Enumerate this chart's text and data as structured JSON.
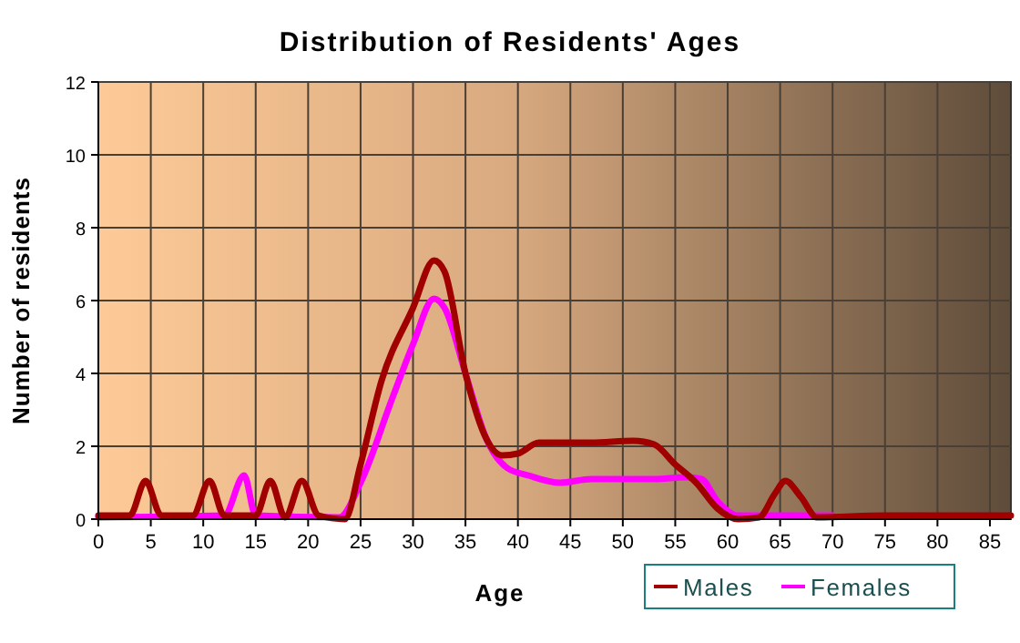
{
  "chart_data": {
    "type": "line",
    "title": "Distribution of Residents' Ages",
    "xlabel": "Age",
    "ylabel": "Number of residents",
    "xlim": [
      0,
      87
    ],
    "xticks": [
      0,
      5,
      10,
      15,
      20,
      25,
      30,
      35,
      40,
      45,
      50,
      55,
      60,
      65,
      70,
      75,
      80,
      85
    ],
    "ylim": [
      0,
      12
    ],
    "yticks": [
      0,
      2,
      4,
      6,
      8,
      10,
      12
    ],
    "grid": true,
    "legend": "bottom right",
    "line_style": "solid",
    "series": [
      {
        "name": "Males",
        "color": "#a00000",
        "x": [
          0,
          3,
          4.5,
          6,
          9,
          10.6,
          12,
          15,
          16.4,
          17.8,
          19.4,
          21,
          23.5,
          25,
          27,
          30,
          32,
          33,
          35,
          37,
          38.5,
          40,
          42,
          47,
          51,
          53,
          55,
          57,
          59,
          61,
          63,
          64.5,
          65.5,
          67,
          68.5,
          75,
          87
        ],
        "values": [
          0.1,
          0.1,
          1.05,
          0.1,
          0.1,
          1.05,
          0.1,
          0.1,
          1.05,
          0.05,
          1.05,
          0.1,
          0,
          1.5,
          3.8,
          5.8,
          7.1,
          6.8,
          4,
          2.2,
          1.75,
          1.8,
          2.1,
          2.1,
          2.15,
          2.05,
          1.5,
          1,
          0.3,
          0,
          0.05,
          0.7,
          1.05,
          0.6,
          0.05,
          0.1,
          0.1
        ]
      },
      {
        "name": "Females",
        "color": "#ff00ff",
        "x": [
          0,
          12,
          13.9,
          15,
          23,
          25,
          28,
          30,
          32,
          33,
          35,
          37,
          39,
          41,
          44,
          47,
          50,
          53,
          56,
          57.5,
          59,
          61,
          70
        ],
        "values": [
          0.05,
          0.1,
          1.2,
          0.1,
          0.05,
          1,
          3.3,
          4.8,
          6.05,
          5.8,
          4,
          2.2,
          1.4,
          1.2,
          1,
          1.1,
          1.1,
          1.1,
          1.15,
          1.1,
          0.5,
          0.1,
          0.1
        ]
      }
    ]
  }
}
